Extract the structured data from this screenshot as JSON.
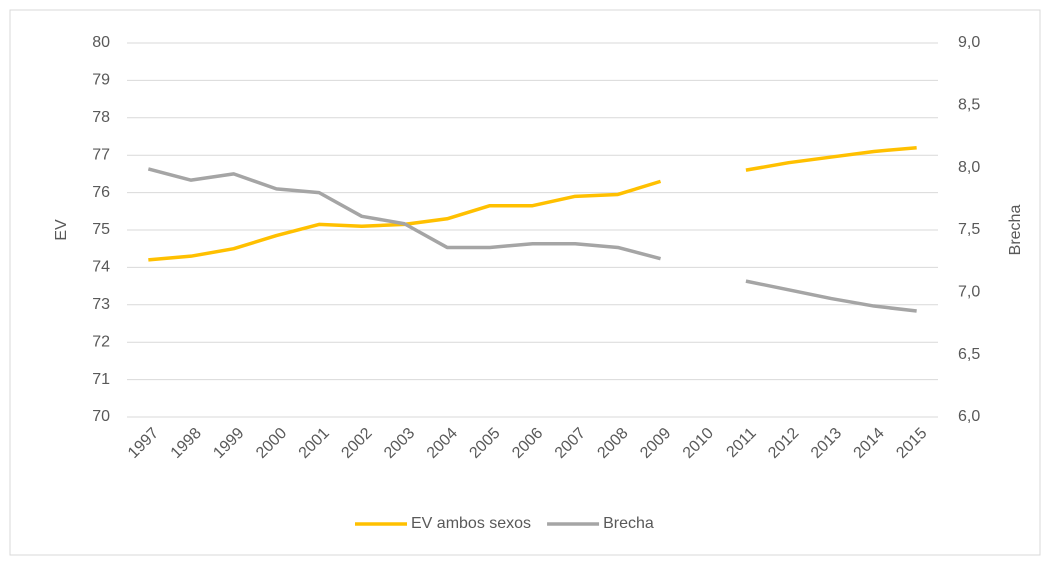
{
  "chart_data": {
    "type": "line",
    "categories": [
      "1997",
      "1998",
      "1999",
      "2000",
      "2001",
      "2002",
      "2003",
      "2004",
      "2005",
      "2006",
      "2007",
      "2008",
      "2009",
      "2010",
      "2011",
      "2012",
      "2013",
      "2014",
      "2015"
    ],
    "series": [
      {
        "name": "EV ambos sexos",
        "color": "#ffc000",
        "values": [
          74.2,
          74.3,
          74.5,
          74.85,
          75.15,
          75.1,
          75.15,
          75.3,
          75.65,
          75.65,
          75.9,
          75.95,
          76.3,
          null,
          76.6,
          76.8,
          76.95,
          77.1,
          77.2
        ]
      },
      {
        "name": "Brecha",
        "color": "#a5a5a5",
        "axis": "y2",
        "values": [
          7.99,
          7.9,
          7.95,
          7.83,
          7.8,
          7.61,
          7.55,
          7.36,
          7.36,
          7.39,
          7.39,
          7.36,
          7.27,
          null,
          7.09,
          7.02,
          6.95,
          6.89,
          6.85
        ]
      }
    ],
    "ylabel": "EV",
    "y2label": "Brecha",
    "ylim": [
      70,
      80
    ],
    "yticks": [
      70,
      71,
      72,
      73,
      74,
      75,
      76,
      77,
      78,
      79,
      80
    ],
    "y2lim": [
      6,
      9
    ],
    "y2ticks": [
      {
        "value": 6,
        "label": "6,0"
      },
      {
        "value": 6.5,
        "label": "6,5"
      },
      {
        "value": 7,
        "label": "7,0"
      },
      {
        "value": 7.5,
        "label": "7,5"
      },
      {
        "value": 8,
        "label": "8,0"
      },
      {
        "value": 8.5,
        "label": "8,5"
      },
      {
        "value": 9,
        "label": "9,0"
      }
    ],
    "grid": true,
    "legend": "bottom"
  }
}
